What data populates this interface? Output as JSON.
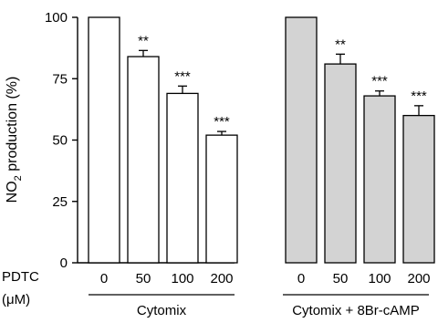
{
  "chart_data": {
    "type": "bar",
    "ylabel": "NO",
    "ylabel_subscript": "2",
    "ylabel_suffix": " production (%)",
    "ylim": [
      0,
      100
    ],
    "yticks": [
      "0",
      "25",
      "50",
      "75",
      "100"
    ],
    "xlabel": "PDTC",
    "xlabel_unit": "(μM)",
    "groups": [
      {
        "name": "Cytomix",
        "fill": "#ffffff",
        "categories": [
          "0",
          "50",
          "100",
          "200"
        ],
        "values": [
          100,
          84,
          69,
          52
        ],
        "errors": [
          0,
          2.5,
          3,
          1.5
        ],
        "significance": [
          "",
          "**",
          "***",
          "***"
        ]
      },
      {
        "name": "Cytomix + 8Br-cAMP",
        "fill": "#d3d3d3",
        "categories": [
          "0",
          "50",
          "100",
          "200"
        ],
        "values": [
          100,
          81,
          68,
          60
        ],
        "errors": [
          0,
          4,
          2,
          4
        ],
        "significance": [
          "",
          "**",
          "***",
          "***"
        ]
      }
    ],
    "colors": {
      "axis": "#000000",
      "bar_stroke": "#000000"
    }
  }
}
